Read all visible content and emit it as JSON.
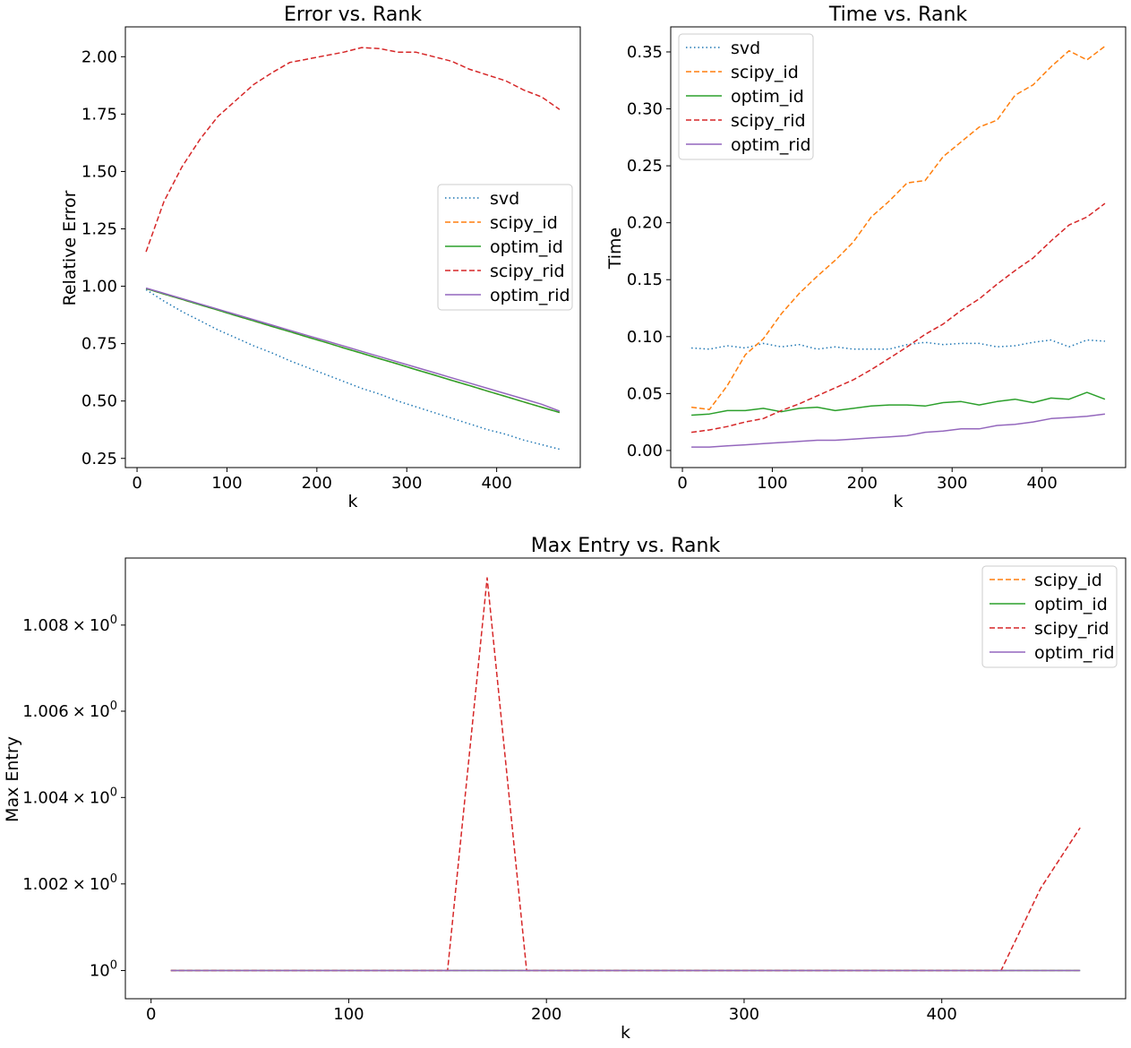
{
  "chart_data": [
    {
      "type": "line",
      "title": "Error vs. Rank",
      "xlabel": "k",
      "ylabel": "Relative Error",
      "xlim": [
        -13,
        493
      ],
      "ylim": [
        0.21,
        2.13
      ],
      "xticks": [
        0,
        100,
        200,
        300,
        400
      ],
      "yticks": [
        0.25,
        0.5,
        0.75,
        1.0,
        1.25,
        1.5,
        1.75,
        2.0
      ],
      "ytick_labels": [
        "0.25",
        "0.50",
        "0.75",
        "1.00",
        "1.25",
        "1.50",
        "1.75",
        "2.00"
      ],
      "legend_position": "center-right",
      "x": [
        10,
        30,
        50,
        70,
        90,
        110,
        130,
        150,
        170,
        190,
        210,
        230,
        250,
        270,
        290,
        310,
        330,
        350,
        370,
        390,
        410,
        430,
        450,
        470
      ],
      "series": [
        {
          "name": "svd",
          "color": "#1f77b4",
          "style": "dotted",
          "values": [
            0.985,
            0.935,
            0.89,
            0.85,
            0.81,
            0.775,
            0.74,
            0.71,
            0.675,
            0.645,
            0.615,
            0.585,
            0.555,
            0.53,
            0.5,
            0.475,
            0.45,
            0.425,
            0.4,
            0.375,
            0.355,
            0.33,
            0.31,
            0.29
          ]
        },
        {
          "name": "scipy_id",
          "color": "#ff7f0e",
          "style": "dashed",
          "values": [
            0.99,
            0.966,
            0.943,
            0.919,
            0.896,
            0.872,
            0.849,
            0.825,
            0.802,
            0.778,
            0.755,
            0.731,
            0.708,
            0.684,
            0.661,
            0.637,
            0.614,
            0.59,
            0.567,
            0.543,
            0.52,
            0.496,
            0.473,
            0.45
          ]
        },
        {
          "name": "optim_id",
          "color": "#2ca02c",
          "style": "solid",
          "values": [
            0.99,
            0.966,
            0.943,
            0.919,
            0.896,
            0.872,
            0.849,
            0.825,
            0.802,
            0.778,
            0.755,
            0.731,
            0.708,
            0.684,
            0.661,
            0.637,
            0.614,
            0.59,
            0.567,
            0.543,
            0.52,
            0.496,
            0.473,
            0.45
          ]
        },
        {
          "name": "scipy_rid",
          "color": "#d62728",
          "style": "dashed",
          "values": [
            1.15,
            1.37,
            1.52,
            1.64,
            1.74,
            1.81,
            1.88,
            1.93,
            1.975,
            1.99,
            2.005,
            2.02,
            2.04,
            2.035,
            2.02,
            2.02,
            2.0,
            1.98,
            1.945,
            1.92,
            1.895,
            1.855,
            1.825,
            1.77
          ]
        },
        {
          "name": "optim_rid",
          "color": "#9467bd",
          "style": "solid",
          "values": [
            0.992,
            0.969,
            0.946,
            0.923,
            0.9,
            0.877,
            0.854,
            0.831,
            0.808,
            0.785,
            0.762,
            0.739,
            0.716,
            0.693,
            0.67,
            0.647,
            0.624,
            0.601,
            0.578,
            0.555,
            0.532,
            0.509,
            0.486,
            0.456
          ]
        }
      ]
    },
    {
      "type": "line",
      "title": "Time vs. Rank",
      "xlabel": "k",
      "ylabel": "Time",
      "xlim": [
        -13,
        493
      ],
      "ylim": [
        -0.015,
        0.372
      ],
      "xticks": [
        0,
        100,
        200,
        300,
        400
      ],
      "yticks": [
        0.0,
        0.05,
        0.1,
        0.15,
        0.2,
        0.25,
        0.3,
        0.35
      ],
      "ytick_labels": [
        "0.00",
        "0.05",
        "0.10",
        "0.15",
        "0.20",
        "0.25",
        "0.30",
        "0.35"
      ],
      "legend_position": "upper-left",
      "x": [
        10,
        30,
        50,
        70,
        90,
        110,
        130,
        150,
        170,
        190,
        210,
        230,
        250,
        270,
        290,
        310,
        330,
        350,
        370,
        390,
        410,
        430,
        450,
        470
      ],
      "series": [
        {
          "name": "svd",
          "color": "#1f77b4",
          "style": "dotted",
          "values": [
            0.09,
            0.089,
            0.092,
            0.09,
            0.094,
            0.091,
            0.093,
            0.089,
            0.091,
            0.089,
            0.089,
            0.089,
            0.093,
            0.095,
            0.093,
            0.094,
            0.094,
            0.091,
            0.092,
            0.095,
            0.097,
            0.091,
            0.097,
            0.096
          ]
        },
        {
          "name": "scipy_id",
          "color": "#ff7f0e",
          "style": "dashed",
          "values": [
            0.038,
            0.036,
            0.057,
            0.084,
            0.098,
            0.12,
            0.138,
            0.153,
            0.167,
            0.183,
            0.205,
            0.219,
            0.235,
            0.237,
            0.258,
            0.271,
            0.284,
            0.29,
            0.312,
            0.321,
            0.337,
            0.351,
            0.343,
            0.355
          ]
        },
        {
          "name": "optim_id",
          "color": "#2ca02c",
          "style": "solid",
          "values": [
            0.031,
            0.032,
            0.035,
            0.035,
            0.037,
            0.034,
            0.037,
            0.038,
            0.035,
            0.037,
            0.039,
            0.04,
            0.04,
            0.039,
            0.042,
            0.043,
            0.04,
            0.043,
            0.045,
            0.042,
            0.046,
            0.045,
            0.051,
            0.045
          ]
        },
        {
          "name": "scipy_rid",
          "color": "#d62728",
          "style": "dashed",
          "values": [
            0.016,
            0.018,
            0.021,
            0.025,
            0.028,
            0.035,
            0.041,
            0.048,
            0.055,
            0.062,
            0.071,
            0.081,
            0.091,
            0.102,
            0.111,
            0.123,
            0.133,
            0.146,
            0.158,
            0.169,
            0.184,
            0.198,
            0.205,
            0.217
          ]
        },
        {
          "name": "optim_rid",
          "color": "#9467bd",
          "style": "solid",
          "values": [
            0.003,
            0.003,
            0.004,
            0.005,
            0.006,
            0.007,
            0.008,
            0.009,
            0.009,
            0.01,
            0.011,
            0.012,
            0.013,
            0.016,
            0.017,
            0.019,
            0.019,
            0.022,
            0.023,
            0.025,
            0.028,
            0.029,
            0.03,
            0.032
          ]
        }
      ]
    },
    {
      "type": "line",
      "title": "Max Entry vs. Rank",
      "xlabel": "k",
      "ylabel": "Max Entry",
      "yscale": "log",
      "xlim": [
        -13,
        493
      ],
      "ylim": [
        0.99935,
        1.00956
      ],
      "xticks": [
        0,
        100,
        200,
        300,
        400
      ],
      "yticks": [
        1.0,
        1.002,
        1.004,
        1.006,
        1.008
      ],
      "ytick_mantissas": [
        "",
        "1.002",
        "1.004",
        "1.006",
        "1.008"
      ],
      "ytick_base": "10",
      "ytick_exp": "0",
      "ytick_times": "×",
      "legend_position": "upper-right",
      "x": [
        10,
        30,
        50,
        70,
        90,
        110,
        130,
        150,
        170,
        190,
        210,
        230,
        250,
        270,
        290,
        310,
        330,
        350,
        370,
        390,
        410,
        430,
        450,
        470
      ],
      "series": [
        {
          "name": "scipy_id",
          "color": "#ff7f0e",
          "style": "dashed",
          "values": [
            1.0,
            1.0,
            1.0,
            1.0,
            1.0,
            1.0,
            1.0,
            1.0,
            1.0,
            1.0,
            1.0,
            1.0,
            1.0,
            1.0,
            1.0,
            1.0,
            1.0,
            1.0,
            1.0,
            1.0,
            1.0,
            1.0,
            1.0,
            1.0
          ]
        },
        {
          "name": "optim_id",
          "color": "#2ca02c",
          "style": "solid",
          "values": [
            1.0,
            1.0,
            1.0,
            1.0,
            1.0,
            1.0,
            1.0,
            1.0,
            1.0,
            1.0,
            1.0,
            1.0,
            1.0,
            1.0,
            1.0,
            1.0,
            1.0,
            1.0,
            1.0,
            1.0,
            1.0,
            1.0,
            1.0,
            1.0
          ]
        },
        {
          "name": "scipy_rid",
          "color": "#d62728",
          "style": "dashed",
          "values": [
            1.0,
            1.0,
            1.0,
            1.0,
            1.0,
            1.0,
            1.0,
            1.0,
            1.0091,
            1.0,
            1.0,
            1.0,
            1.0,
            1.0,
            1.0,
            1.0,
            1.0,
            1.0,
            1.0,
            1.0,
            1.0,
            1.0,
            1.0019,
            1.0033
          ]
        },
        {
          "name": "optim_rid",
          "color": "#9467bd",
          "style": "solid",
          "values": [
            1.0,
            1.0,
            1.0,
            1.0,
            1.0,
            1.0,
            1.0,
            1.0,
            1.0,
            1.0,
            1.0,
            1.0,
            1.0,
            1.0,
            1.0,
            1.0,
            1.0,
            1.0,
            1.0,
            1.0,
            1.0,
            1.0,
            1.0,
            1.0
          ]
        }
      ]
    }
  ]
}
